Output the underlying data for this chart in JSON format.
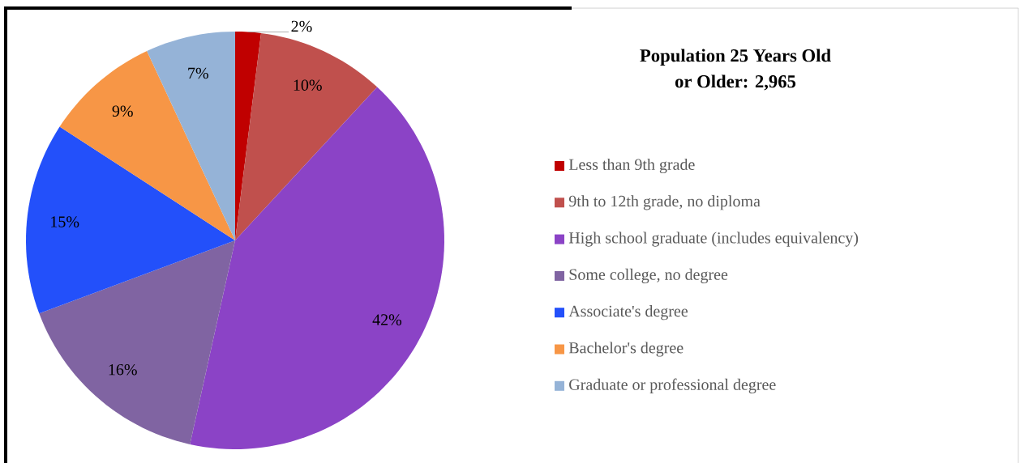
{
  "chart_data": {
    "type": "pie",
    "title": "Population 25 Years Old\nor Older: 2,965",
    "categories": [
      "Less than 9th grade",
      "9th to 12th grade, no diploma",
      "High school graduate (includes equivalency)",
      "Some college, no degree",
      "Associate's degree",
      "Bachelor's degree",
      "Graduate or professional degree"
    ],
    "values": [
      2,
      10,
      42,
      16,
      15,
      9,
      7
    ],
    "colors": [
      "#c00000",
      "#c0504d",
      "#8b43c6",
      "#8064a2",
      "#2350fa",
      "#f79646",
      "#95b3d7"
    ],
    "value_labels": [
      "2%",
      "10%",
      "42%",
      "16%",
      "15%",
      "9%",
      "7%"
    ],
    "legend": "right"
  }
}
